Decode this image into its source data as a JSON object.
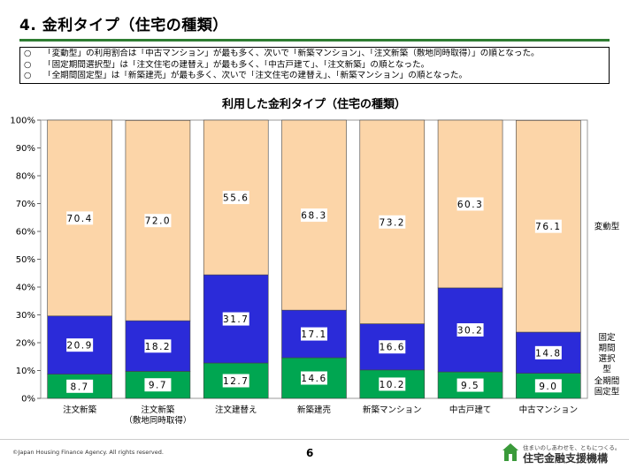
{
  "page_title": "4.  金利タイプ（住宅の種類）",
  "notes": [
    {
      "mark": "○",
      "text": "「変動型」の利用割合は「中古マンション」が最も多く、次いで「新築マンション」、「注文新築（敷地同時取得）」の順となった。"
    },
    {
      "mark": "○",
      "text": "「固定期間選択型」は「注文住宅の建替え」が最も多く、「中古戸建て」、「注文新築」の順となった。"
    },
    {
      "mark": "○",
      "text": "「全期間固定型」は「新築建売」が最も多く、次いで「注文住宅の建替え」、「新築マンション」の順となった。"
    }
  ],
  "chart_data": {
    "type": "bar",
    "stacked": true,
    "title": "利用した金利タイプ（住宅の種類）",
    "categories": [
      [
        "注文新築"
      ],
      [
        "注文新築",
        "（敷地同時取得）"
      ],
      [
        "注文建替え"
      ],
      [
        "新築建売"
      ],
      [
        "新築マンション"
      ],
      [
        "中古戸建て"
      ],
      [
        "中古マンション"
      ]
    ],
    "series": [
      {
        "name": "全期間固定型",
        "label_lines": [
          "全期間",
          "固定型"
        ],
        "color": "#00a651",
        "values": [
          8.7,
          9.7,
          12.7,
          14.6,
          10.2,
          9.5,
          9.0
        ],
        "value_labels": [
          "8.7",
          "9.7",
          "12.7",
          "14.6",
          "10.2",
          "9.5",
          "9.0"
        ]
      },
      {
        "name": "固定期間選択型",
        "label_lines": [
          "固定",
          "期間",
          "選択",
          "型"
        ],
        "color": "#2b2bd9",
        "values": [
          20.9,
          18.2,
          31.7,
          17.1,
          16.6,
          30.2,
          14.8
        ],
        "value_labels": [
          "20.9",
          "18.2",
          "31.7",
          "17.1",
          "16.6",
          "30.2",
          "14.8"
        ]
      },
      {
        "name": "変動型",
        "label_lines": [
          "変動型"
        ],
        "color": "#fcd5a8",
        "values": [
          70.4,
          72.0,
          55.6,
          68.3,
          73.2,
          60.3,
          76.1
        ],
        "value_labels": [
          "70.4",
          "72.0",
          "55.6",
          "68.3",
          "73.2",
          "60.3",
          "76.1"
        ]
      }
    ],
    "ylim": [
      0,
      100
    ],
    "yticks": [
      "0%",
      "10%",
      "20%",
      "30%",
      "40%",
      "50%",
      "60%",
      "70%",
      "80%",
      "90%",
      "100%"
    ],
    "grid": false,
    "legend": "right"
  },
  "footer": {
    "copyright": "©Japan Housing Finance Agency. All rights reserved.",
    "page_number": "6",
    "brand_tagline": "住まいのしあわせを、ともにつくる。",
    "brand_name": "住宅金融支援機構"
  }
}
